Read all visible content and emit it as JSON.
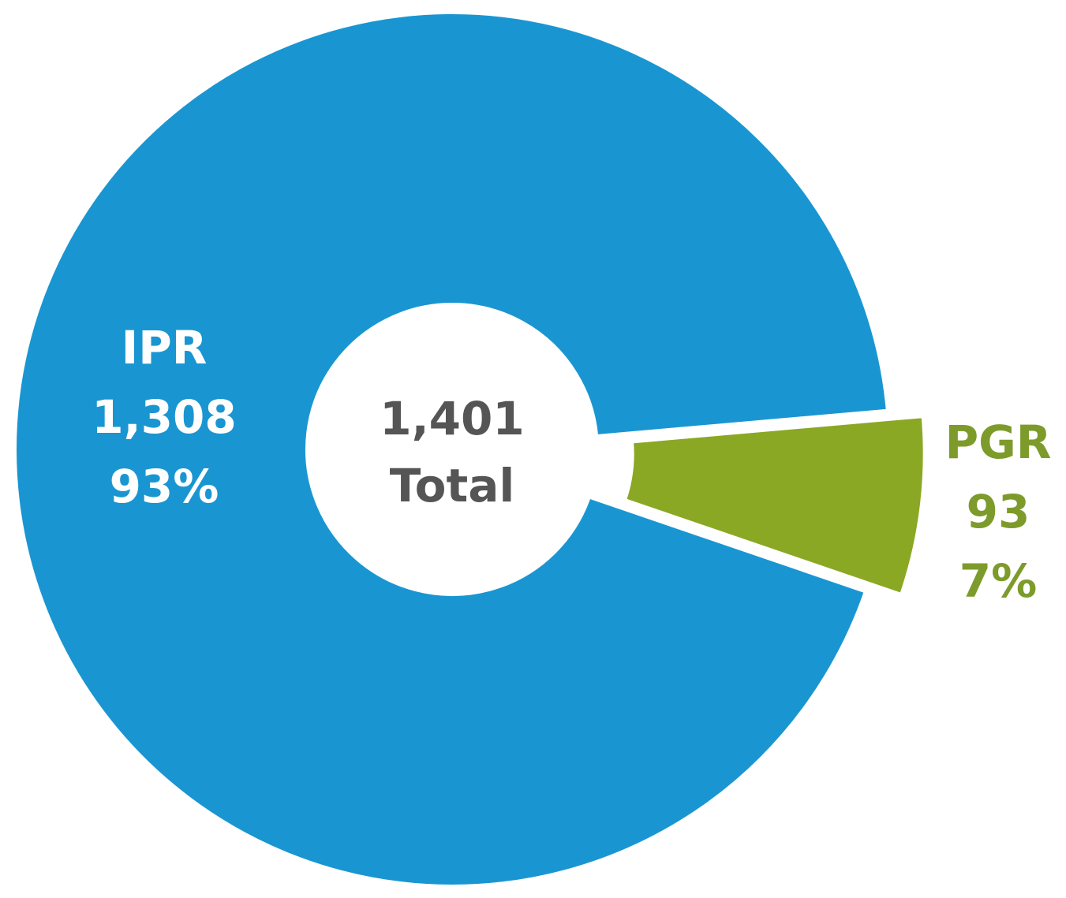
{
  "chart_data": {
    "type": "pie",
    "categories": [
      "IPR",
      "PGR"
    ],
    "values": [
      1308,
      93
    ],
    "value_labels": [
      "1,308",
      "93"
    ],
    "percents": [
      93,
      7
    ],
    "percent_labels": [
      "93%",
      "7%"
    ],
    "colors": [
      "#1996d1",
      "#8aa823"
    ],
    "label_colors": [
      "#ffffff",
      "#7d9b2b"
    ],
    "exploded": [
      false,
      true
    ],
    "total": 1401,
    "total_label": "1,401",
    "total_caption": "Total"
  }
}
